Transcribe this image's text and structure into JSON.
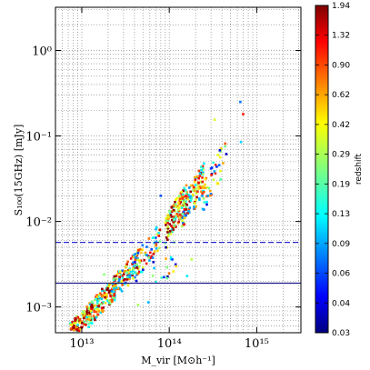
{
  "chart_data": {
    "type": "scatter",
    "xlabel": "M_vir [M⊙h⁻¹]",
    "ylabel": "S₁₀₀(15GHz) [mJy]",
    "x_scale": "log",
    "y_scale": "log",
    "xlim": [
      5000000000000.0,
      3200000000000000.0
    ],
    "ylim": [
      0.0005,
      3.2
    ],
    "x_ticks": [
      {
        "value": 10000000000000.0,
        "label": "10¹³"
      },
      {
        "value": 100000000000000.0,
        "label": "10¹⁴"
      },
      {
        "value": 1000000000000000.0,
        "label": "10¹⁵"
      }
    ],
    "y_ticks": [
      {
        "value": 0.001,
        "label": "10⁻³"
      },
      {
        "value": 0.01,
        "label": "10⁻²"
      },
      {
        "value": 0.1,
        "label": "10⁻¹"
      },
      {
        "value": 1,
        "label": "10⁰"
      }
    ],
    "grid": true,
    "hlines": [
      {
        "y": 0.0057,
        "style": "dashed",
        "color": "#2a2acc"
      },
      {
        "y": 0.0019,
        "style": "solid",
        "color": "#1a1a8a"
      }
    ],
    "colorbar": {
      "label": "redshift",
      "ticks": [
        "1.94",
        "1.32",
        "0.90",
        "0.62",
        "0.42",
        "0.29",
        "0.19",
        "0.13",
        "0.09",
        "0.06",
        "0.04",
        "0.03"
      ],
      "colormap": "jet"
    },
    "clusters": [
      {
        "x_range": [
          7000000000000.0,
          13000000000000.0
        ],
        "y_range": [
          0.0005,
          0.0009
        ],
        "n": 120,
        "z_bias": 0.75
      },
      {
        "x_range": [
          12000000000000.0,
          25000000000000.0
        ],
        "y_range": [
          0.0008,
          0.0018
        ],
        "n": 150,
        "z_bias": 0.7
      },
      {
        "x_range": [
          22000000000000.0,
          45000000000000.0
        ],
        "y_range": [
          0.0015,
          0.0035
        ],
        "n": 110,
        "z_bias": 0.6
      },
      {
        "x_range": [
          40000000000000.0,
          80000000000000.0
        ],
        "y_range": [
          0.003,
          0.007
        ],
        "n": 60,
        "z_bias": 0.55
      },
      {
        "x_range": [
          90000000000000.0,
          160000000000000.0
        ],
        "y_range": [
          0.008,
          0.02
        ],
        "n": 140,
        "z_bias": 0.75
      },
      {
        "x_range": [
          140000000000000.0,
          260000000000000.0
        ],
        "y_range": [
          0.012,
          0.035
        ],
        "n": 110,
        "z_bias": 0.6
      },
      {
        "x_range": [
          240000000000000.0,
          450000000000000.0
        ],
        "y_range": [
          0.02,
          0.06
        ],
        "n": 45,
        "z_bias": 0.45
      },
      {
        "x_range": [
          40000000000000.0,
          120000000000000.0
        ],
        "y_range": [
          0.0012,
          0.005
        ],
        "n": 25,
        "z_bias": 0.4
      }
    ],
    "outliers": [
      {
        "x": 330000000000000.0,
        "y": 0.155,
        "z": 0.35
      },
      {
        "x": 650000000000000.0,
        "y": 0.25,
        "z": 0.08
      },
      {
        "x": 700000000000000.0,
        "y": 0.18,
        "z": 1.1
      },
      {
        "x": 660000000000000.0,
        "y": 0.085,
        "z": 0.12
      },
      {
        "x": 160000000000000.0,
        "y": 0.0023,
        "z": 0.13
      },
      {
        "x": 120000000000000.0,
        "y": 0.003,
        "z": 0.5
      },
      {
        "x": 180000000000000.0,
        "y": 0.0036,
        "z": 0.3
      },
      {
        "x": 18000000000000.0,
        "y": 0.0024,
        "z": 0.25
      },
      {
        "x": 80000000000000.0,
        "y": 0.02,
        "z": 0.07
      },
      {
        "x": 105000000000000.0,
        "y": 0.0038,
        "z": 0.15
      }
    ]
  }
}
